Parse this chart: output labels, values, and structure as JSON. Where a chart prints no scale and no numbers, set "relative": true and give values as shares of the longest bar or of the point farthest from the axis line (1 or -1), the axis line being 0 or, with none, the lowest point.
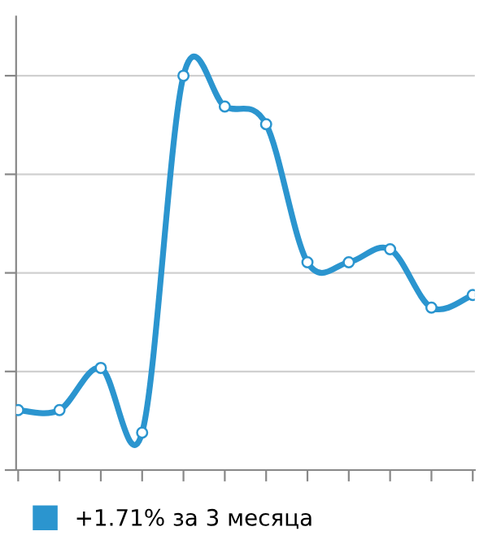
{
  "chart_data": {
    "type": "line",
    "relative": true,
    "categories": [
      null,
      null,
      null,
      null,
      null,
      null,
      null,
      null,
      null,
      null,
      null,
      null
    ],
    "series": [
      {
        "name": "+1.71% за 3 месяца",
        "color": "#2b95cf",
        "values": [
          0.152,
          0.152,
          0.259,
          0.095,
          1,
          0.922,
          0.877,
          0.527,
          0.527,
          0.56,
          0.412,
          0.444
        ]
      }
    ],
    "grid": "y",
    "legend": "bottom",
    "marker": "circle"
  }
}
